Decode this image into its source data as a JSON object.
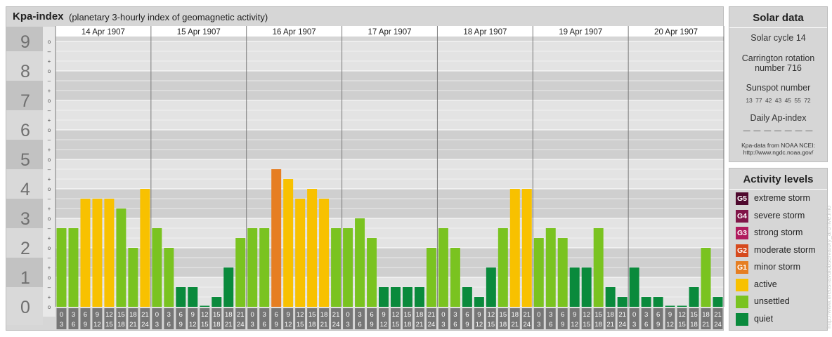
{
  "header": {
    "title": "Kpa-index",
    "subtitle": "(planetary 3-hourly index of geomagnetic activity)"
  },
  "solar": {
    "title": "Solar data",
    "cycle": "Solar cycle 14",
    "carrington_1": "Carrington rotation",
    "carrington_2": "number 716",
    "sunspot_title": "Sunspot number",
    "sunspots": "13 77 42 43 45 55 72",
    "ap_title": "Daily Ap-index",
    "ap_values": "— — — — — — —",
    "source_1": "Kpa-data from NOAA NCEI:",
    "source_2": "http://www.ngdc.noaa.gov/"
  },
  "levels": {
    "title": "Activity levels",
    "items": [
      {
        "badge": "G5",
        "label": "extreme storm",
        "color": "#4f0a2e"
      },
      {
        "badge": "G4",
        "label": "severe storm",
        "color": "#801548"
      },
      {
        "badge": "G3",
        "label": "strong storm",
        "color": "#b01a5d"
      },
      {
        "badge": "G2",
        "label": "moderate storm",
        "color": "#d64a1e"
      },
      {
        "badge": "G1",
        "label": "minor storm",
        "color": "#e67e22"
      },
      {
        "badge": "",
        "label": "active",
        "color": "#f8c100"
      },
      {
        "badge": "",
        "label": "unsettled",
        "color": "#7ac320"
      },
      {
        "badge": "",
        "label": "quiet",
        "color": "#0a8a3c"
      }
    ]
  },
  "watermark": "http://www.theusnavalobservatory_archive.info",
  "chart_data": {
    "type": "bar",
    "title": "Kpa-index",
    "y_ticks": [
      "0",
      "1",
      "2",
      "3",
      "4",
      "5",
      "6",
      "7",
      "8",
      "9"
    ],
    "sub_ticks": [
      "o",
      "+",
      "–"
    ],
    "ylim": [
      0,
      9
    ],
    "days": [
      "14 Apr 1907",
      "15 Apr 1907",
      "16 Apr 1907",
      "17 Apr 1907",
      "18 Apr 1907",
      "19 Apr 1907",
      "20 Apr 1907"
    ],
    "hour_labels": [
      [
        "0",
        "3"
      ],
      [
        "3",
        "6"
      ],
      [
        "6",
        "9"
      ],
      [
        "9",
        "12"
      ],
      [
        "12",
        "15"
      ],
      [
        "15",
        "18"
      ],
      [
        "18",
        "21"
      ],
      [
        "21",
        "24"
      ]
    ],
    "colors": {
      "quiet": "#0a8a3c",
      "unsettled": "#7ac320",
      "active": "#f8c100",
      "minor": "#e67e22"
    },
    "values": [
      [
        2.667,
        2.667,
        3.667,
        3.667,
        3.667,
        3.333,
        2.0,
        4.0
      ],
      [
        2.667,
        2.0,
        0.667,
        0.667,
        0.0,
        0.333,
        1.333,
        2.333
      ],
      [
        2.667,
        2.667,
        4.667,
        4.333,
        3.667,
        4.0,
        3.667,
        2.667
      ],
      [
        2.667,
        3.0,
        2.333,
        0.667,
        0.667,
        0.667,
        0.667,
        2.0
      ],
      [
        2.667,
        2.0,
        0.667,
        0.333,
        1.333,
        2.667,
        4.0,
        4.0
      ],
      [
        2.333,
        2.667,
        2.333,
        1.333,
        1.333,
        2.667,
        0.667,
        0.333
      ],
      [
        1.333,
        0.333,
        0.333,
        0.0,
        0.0,
        0.667,
        2.0,
        0.333
      ]
    ]
  }
}
